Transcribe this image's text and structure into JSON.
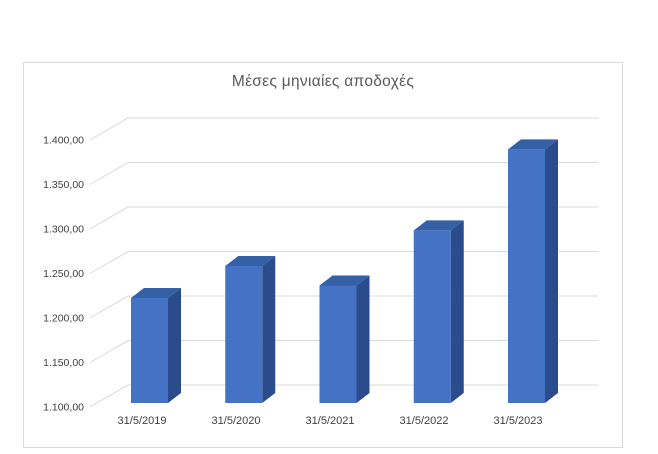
{
  "chart_data": {
    "type": "bar",
    "variant": "3d-column",
    "title": "Μέσες μηνιαίες αποδοχές",
    "categories": [
      "31/5/2019",
      "31/5/2020",
      "31/5/2021",
      "31/5/2022",
      "31/5/2023"
    ],
    "values": [
      1218,
      1254,
      1232,
      1294,
      1385
    ],
    "y_ticks": [
      "1.100,00",
      "1.150,00",
      "1.200,00",
      "1.250,00",
      "1.300,00",
      "1.350,00",
      "1.400,00"
    ],
    "ylim": [
      1100,
      1400
    ],
    "tick_step": 50,
    "grid": true,
    "legend": "none",
    "xlabel": "",
    "ylabel": "",
    "colors": {
      "bar_front": "#4472C4",
      "bar_top": "#3560A6",
      "bar_side": "#2B4C8C",
      "gridline": "#D9D9D9",
      "frame_border": "#D9D9D9",
      "title_text": "#595959",
      "axis_text": "#404040"
    }
  }
}
